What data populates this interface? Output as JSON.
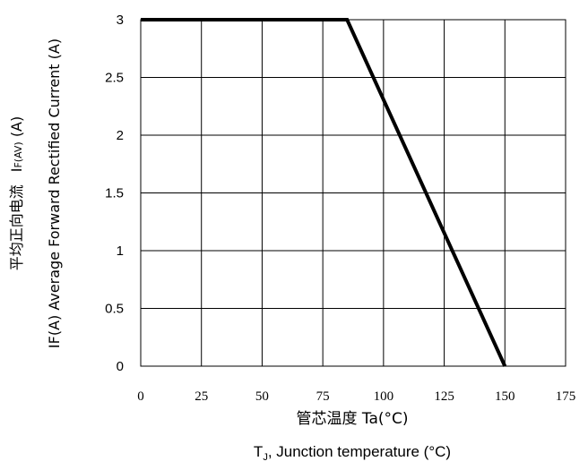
{
  "chart_data": {
    "type": "line",
    "x": [
      0,
      85,
      150
    ],
    "series": [
      {
        "values": [
          3,
          3,
          0
        ]
      }
    ],
    "xlim": [
      0,
      175
    ],
    "ylim": [
      0,
      3
    ],
    "x_ticks": [
      0,
      25,
      50,
      75,
      100,
      125,
      150,
      175
    ],
    "y_ticks": [
      0,
      0.5,
      1,
      1.5,
      2,
      2.5,
      3
    ],
    "x_tick_labels": [
      "0",
      "25",
      "50",
      "75",
      "100",
      "125",
      "150",
      "175"
    ],
    "y_tick_labels": [
      "0",
      "0.5",
      "1",
      "1.5",
      "2",
      "2.5",
      "3"
    ],
    "xlabel": "管芯温度 Ta(°C)",
    "xlabel2_main": "T",
    "xlabel2_sub": "J",
    "xlabel2_rest": ", Junction temperature (°C)",
    "ylabel_line1": "IF(A)  Average Forward Rectified Current (A)",
    "ylabel_line2_cn": "平均正向电流",
    "ylabel_line2_sym": "I",
    "ylabel_line2_sub": "F(AV)",
    "ylabel_line2_unit": " (A)",
    "grid": true,
    "line_color": "#000000"
  }
}
